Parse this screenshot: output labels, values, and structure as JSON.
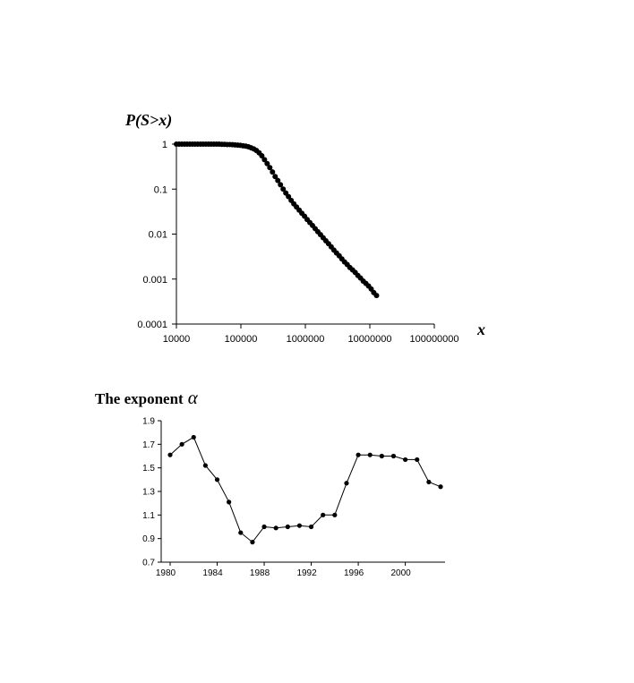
{
  "charts": {
    "ccdf": {
      "ylabel": "P(S>x)",
      "xlabel": "x"
    },
    "alpha": {
      "title_text": "The exponent",
      "title_symbol": "α"
    }
  },
  "chart_data": [
    {
      "type": "scatter",
      "title": "",
      "xlabel": "x",
      "ylabel": "P(S>x)",
      "xscale": "log",
      "yscale": "log",
      "xlim": [
        10000,
        100000000
      ],
      "ylim": [
        0.0001,
        1
      ],
      "xticks": [
        "10000",
        "100000",
        "1000000",
        "10000000",
        "100000000"
      ],
      "yticks": [
        "0.0001",
        "0.001",
        "0.01",
        "0.1",
        "1"
      ],
      "grid": false,
      "marker": "filled-circle",
      "series": [
        {
          "x": [
            10000,
            11000,
            12100,
            13300,
            14600,
            16100,
            17700,
            19500,
            21400,
            23600,
            25900,
            28500,
            31400,
            34500,
            38000,
            41800,
            45900,
            50500,
            55600,
            61100,
            67300,
            74000,
            81400,
            89500,
            98500,
            108300,
            119200,
            131100,
            144200,
            158600,
            174500,
            192000,
            211200,
            232200,
            255500,
            281000,
            309100,
            340000,
            374000,
            411400,
            452600,
            497800,
            547600,
            602400,
            662600,
            728900,
            801800,
            882000,
            970200,
            1067200,
            1173900,
            1291300,
            1420500,
            1562500,
            1718800,
            1890600,
            2079700,
            2287600,
            2516400,
            2768000,
            3044800,
            3349300,
            3684200,
            4052700,
            4457900,
            4903700,
            5394100,
            5933500,
            6526900,
            7179600,
            7897500,
            8687200,
            9555900,
            10500000,
            11500000,
            12700000
          ],
          "y": [
            1,
            1,
            1,
            1,
            1,
            1,
            1,
            1,
            1,
            1,
            1,
            1,
            1,
            1,
            1,
            1,
            1,
            0.99,
            0.99,
            0.98,
            0.98,
            0.97,
            0.96,
            0.95,
            0.94,
            0.92,
            0.9,
            0.87,
            0.83,
            0.78,
            0.72,
            0.64,
            0.55,
            0.45,
            0.37,
            0.3,
            0.24,
            0.19,
            0.155,
            0.125,
            0.1,
            0.082,
            0.068,
            0.056,
            0.047,
            0.04,
            0.034,
            0.029,
            0.025,
            0.021,
            0.018,
            0.0155,
            0.0132,
            0.0113,
            0.0097,
            0.0083,
            0.0071,
            0.0061,
            0.0052,
            0.0044,
            0.0038,
            0.0033,
            0.0028,
            0.0024,
            0.0021,
            0.0018,
            0.0016,
            0.0014,
            0.0012,
            0.00105,
            0.0009,
            0.0008,
            0.0007,
            0.0006,
            0.0005,
            0.00043
          ]
        }
      ]
    },
    {
      "type": "line",
      "title": "The exponent α",
      "xlabel": "",
      "ylabel": "",
      "xlim": [
        1980,
        2003
      ],
      "ylim": [
        0.7,
        1.9
      ],
      "xticks": [
        "1980",
        "1984",
        "1988",
        "1992",
        "1996",
        "2000"
      ],
      "yticks": [
        "0.7",
        "0.9",
        "1.1",
        "1.3",
        "1.5",
        "1.7",
        "1.9"
      ],
      "grid": false,
      "marker": "filled-circle",
      "series": [
        {
          "x": [
            1980,
            1981,
            1982,
            1983,
            1984,
            1985,
            1986,
            1987,
            1988,
            1989,
            1990,
            1991,
            1992,
            1993,
            1994,
            1995,
            1996,
            1997,
            1998,
            1999,
            2000,
            2001,
            2002,
            2003
          ],
          "y": [
            1.61,
            1.7,
            1.76,
            1.52,
            1.4,
            1.21,
            0.95,
            0.87,
            1.0,
            0.99,
            1.0,
            1.01,
            1.0,
            1.1,
            1.1,
            1.37,
            1.61,
            1.61,
            1.6,
            1.6,
            1.57,
            1.57,
            1.38,
            1.34
          ]
        }
      ]
    }
  ]
}
